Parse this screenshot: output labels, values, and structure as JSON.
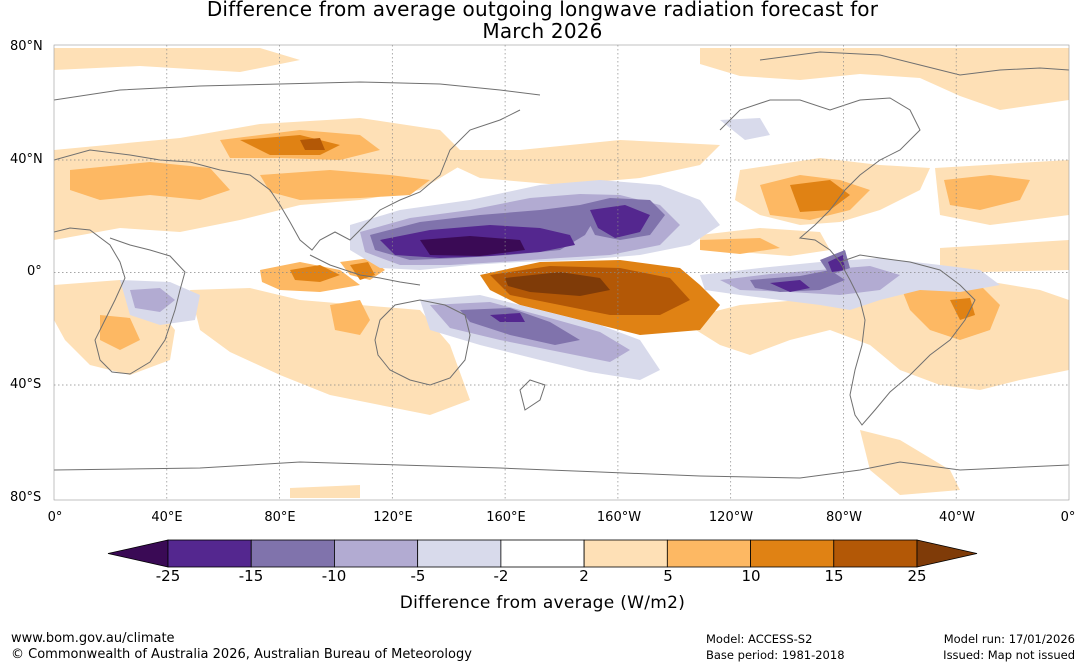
{
  "title": {
    "line1": "Difference from average outgoing longwave radiation forecast for",
    "line2": "March 2026"
  },
  "map": {
    "lat_labels": [
      "80°N",
      "40°N",
      "0°",
      "40°S",
      "80°S"
    ],
    "lon_labels": [
      "0°",
      "40°E",
      "80°E",
      "120°E",
      "160°E",
      "160°W",
      "120°W",
      "80°W",
      "40°W",
      "0°"
    ],
    "features": [
      {
        "name": "west-pacific-negative-anomaly",
        "level": -25
      },
      {
        "name": "central-pacific-positive-anomaly",
        "level": 25
      },
      {
        "name": "south-pacific-negative-band",
        "level": -15
      },
      {
        "name": "east-pacific-negative-band",
        "level": -15
      },
      {
        "name": "maritime-continent-positive",
        "level": 10
      },
      {
        "name": "asia-positive",
        "level": 10
      },
      {
        "name": "gulf-of-mexico-positive",
        "level": 15
      },
      {
        "name": "south-america-positive",
        "level": 10
      }
    ]
  },
  "colorbar": {
    "levels": [
      "-25",
      "-15",
      "-10",
      "-5",
      "-2",
      "2",
      "5",
      "10",
      "15",
      "25"
    ],
    "colors": [
      "#3a0a55",
      "#54278f",
      "#8073ac",
      "#b2abd2",
      "#d8daeb",
      "#ffffff",
      "#fee0b6",
      "#fdb863",
      "#e08214",
      "#b35806",
      "#7f3b08"
    ],
    "label": "Difference from average (W/m2)"
  },
  "footer": {
    "website": "www.bom.gov.au/climate",
    "copyright": "© Commonwealth of Australia 2026, Australian Bureau of Meteorology",
    "model": "Model: ACCESS-S2",
    "base_period": "Base period: 1981-2018",
    "model_run": "Model run: 17/01/2026",
    "issued": "Issued: Map not issued"
  }
}
